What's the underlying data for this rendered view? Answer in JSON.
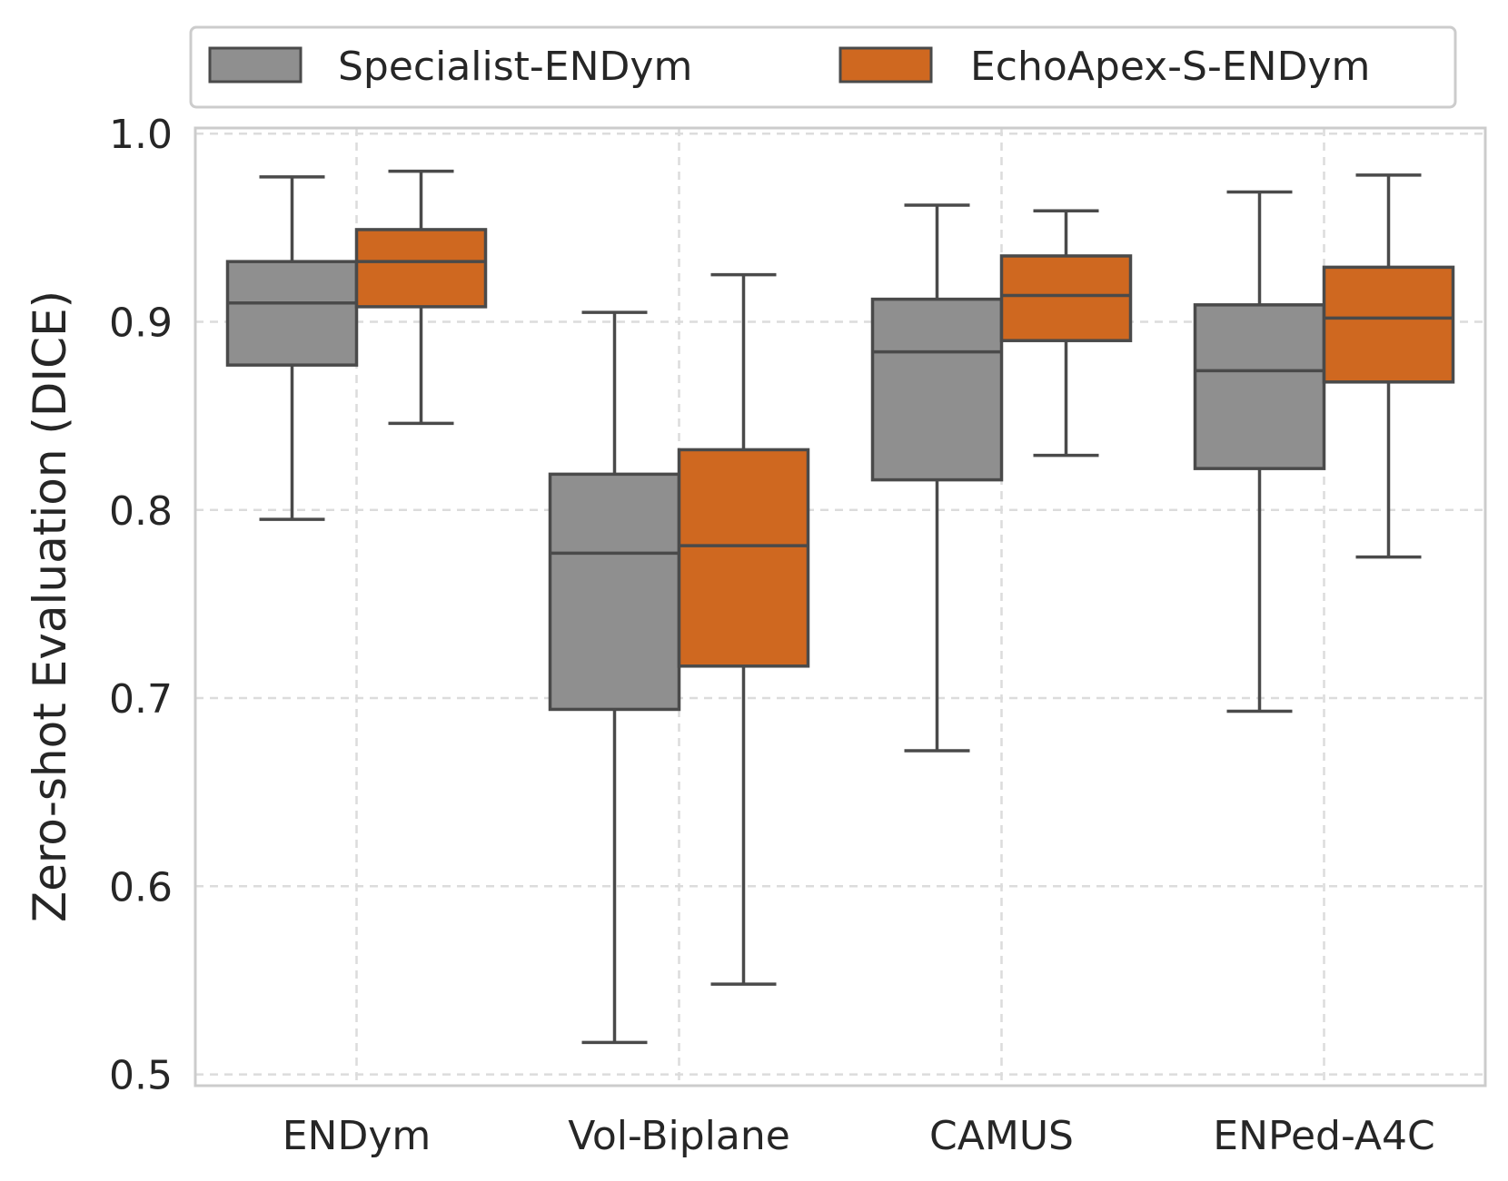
{
  "chart_data": {
    "type": "boxplot",
    "title": "",
    "xlabel": "",
    "ylabel": "Zero-shot Evaluation (DICE)",
    "ylim": [
      0.494,
      1.003
    ],
    "yticks": [
      0.5,
      0.6,
      0.7,
      0.8,
      0.9,
      1.0
    ],
    "ytick_labels": [
      "0.5",
      "0.6",
      "0.7",
      "0.8",
      "0.9",
      "1.0"
    ],
    "grid": true,
    "legend_position": "top",
    "categories": [
      "ENDym",
      "Vol-Biplane",
      "CAMUS",
      "ENPed-A4C"
    ],
    "series": [
      {
        "name": "Specialist-ENDym",
        "color": "#8f8f8f",
        "boxes": [
          {
            "whisker_low": 0.795,
            "q1": 0.877,
            "median": 0.91,
            "q3": 0.932,
            "whisker_high": 0.977
          },
          {
            "whisker_low": 0.517,
            "q1": 0.694,
            "median": 0.777,
            "q3": 0.819,
            "whisker_high": 0.905
          },
          {
            "whisker_low": 0.672,
            "q1": 0.816,
            "median": 0.884,
            "q3": 0.912,
            "whisker_high": 0.962
          },
          {
            "whisker_low": 0.693,
            "q1": 0.822,
            "median": 0.874,
            "q3": 0.909,
            "whisker_high": 0.969
          }
        ]
      },
      {
        "name": "EchoApex-S-ENDym",
        "color": "#cf6820",
        "boxes": [
          {
            "whisker_low": 0.846,
            "q1": 0.908,
            "median": 0.932,
            "q3": 0.949,
            "whisker_high": 0.98
          },
          {
            "whisker_low": 0.548,
            "q1": 0.717,
            "median": 0.781,
            "q3": 0.832,
            "whisker_high": 0.925
          },
          {
            "whisker_low": 0.829,
            "q1": 0.89,
            "median": 0.914,
            "q3": 0.935,
            "whisker_high": 0.959
          },
          {
            "whisker_low": 0.775,
            "q1": 0.868,
            "median": 0.902,
            "q3": 0.929,
            "whisker_high": 0.978
          }
        ]
      }
    ]
  },
  "colors": {
    "grid": "#dcdcdc",
    "frame": "#cccccc",
    "box_edge": "#4a4a4a",
    "text": "#262626"
  }
}
